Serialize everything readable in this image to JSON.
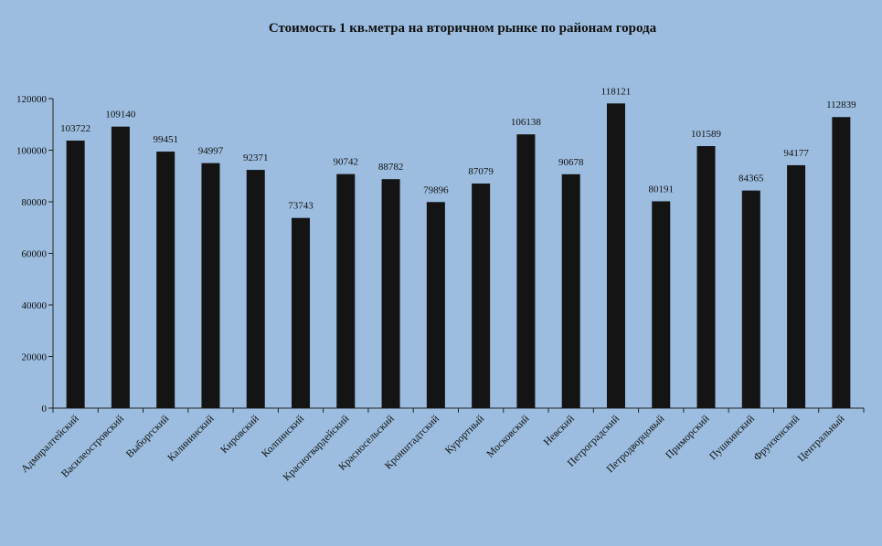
{
  "chart_data": {
    "type": "bar",
    "title": "Стоимость 1 кв.метра на вторичном  рынке по районам  города",
    "xlabel": "",
    "ylabel": "",
    "ylim": [
      0,
      120000
    ],
    "yticks": [
      0,
      20000,
      40000,
      60000,
      80000,
      100000,
      120000
    ],
    "grid": false,
    "legend": "none",
    "categories": [
      "Адмиралтейский",
      "Василеостровский",
      "Выборгский",
      "Калининский",
      "Кировский",
      "Колпинский",
      "Красногвардейский",
      "Красносельский",
      "Кронштадтский",
      "Курортный",
      "Московский",
      "Невский",
      "Петроградский",
      "Петродворцовый",
      "Приморский",
      "Пушкинский",
      "Фрунзенский",
      "Центральный"
    ],
    "values": [
      103722,
      109140,
      99451,
      94997,
      92371,
      73743,
      90742,
      88782,
      79896,
      87079,
      106138,
      90678,
      118121,
      80191,
      101589,
      84365,
      94177,
      112839
    ],
    "colors": {
      "background": "#9cbde0",
      "bar": "#141414",
      "axis": "#222222",
      "text": "#111111"
    }
  }
}
